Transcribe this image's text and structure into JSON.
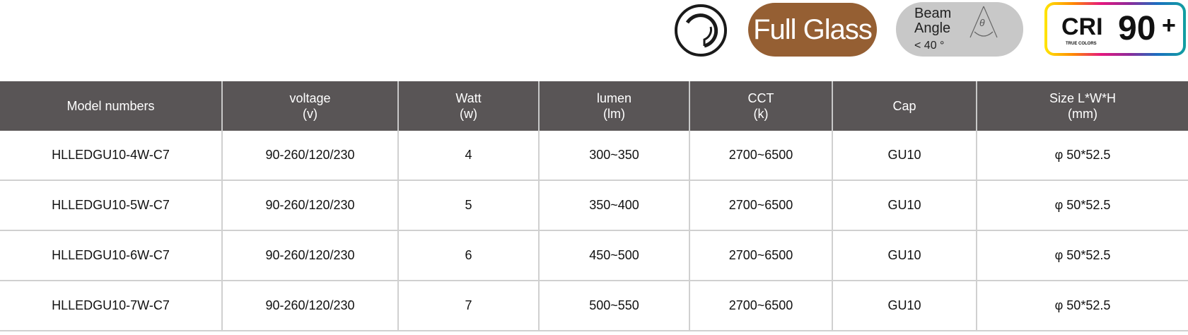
{
  "badges": {
    "ring_icon": "ring-icon",
    "full_glass": "Full Glass",
    "beam_label": "Beam Angle",
    "beam_value": "< 40 °",
    "beam_symbol": "θ",
    "cri_label": "CRI",
    "cri_sub": "TRUE COLORS",
    "cri_value": "90",
    "cri_plus": "+"
  },
  "colors": {
    "header_bg": "#595556",
    "glass": "#955f33",
    "beam": "#c8c8c8"
  },
  "table": {
    "headers": [
      {
        "line1": "Model numbers",
        "line2": ""
      },
      {
        "line1": "voltage",
        "line2": "(v)"
      },
      {
        "line1": "Watt",
        "line2": "(w)"
      },
      {
        "line1": "lumen",
        "line2": "(lm)"
      },
      {
        "line1": "CCT",
        "line2": "(k)"
      },
      {
        "line1": "Cap",
        "line2": ""
      },
      {
        "line1": "Size L*W*H",
        "line2": "(mm)"
      }
    ],
    "rows": [
      [
        "HLLEDGU10-4W-C7",
        "90-260/120/230",
        "4",
        "300~350",
        "2700~6500",
        "GU10",
        "φ 50*52.5"
      ],
      [
        "HLLEDGU10-5W-C7",
        "90-260/120/230",
        "5",
        "350~400",
        "2700~6500",
        "GU10",
        "φ 50*52.5"
      ],
      [
        "HLLEDGU10-6W-C7",
        "90-260/120/230",
        "6",
        "450~500",
        "2700~6500",
        "GU10",
        "φ 50*52.5"
      ],
      [
        "HLLEDGU10-7W-C7",
        "90-260/120/230",
        "7",
        "500~550",
        "2700~6500",
        "GU10",
        "φ 50*52.5"
      ]
    ]
  }
}
